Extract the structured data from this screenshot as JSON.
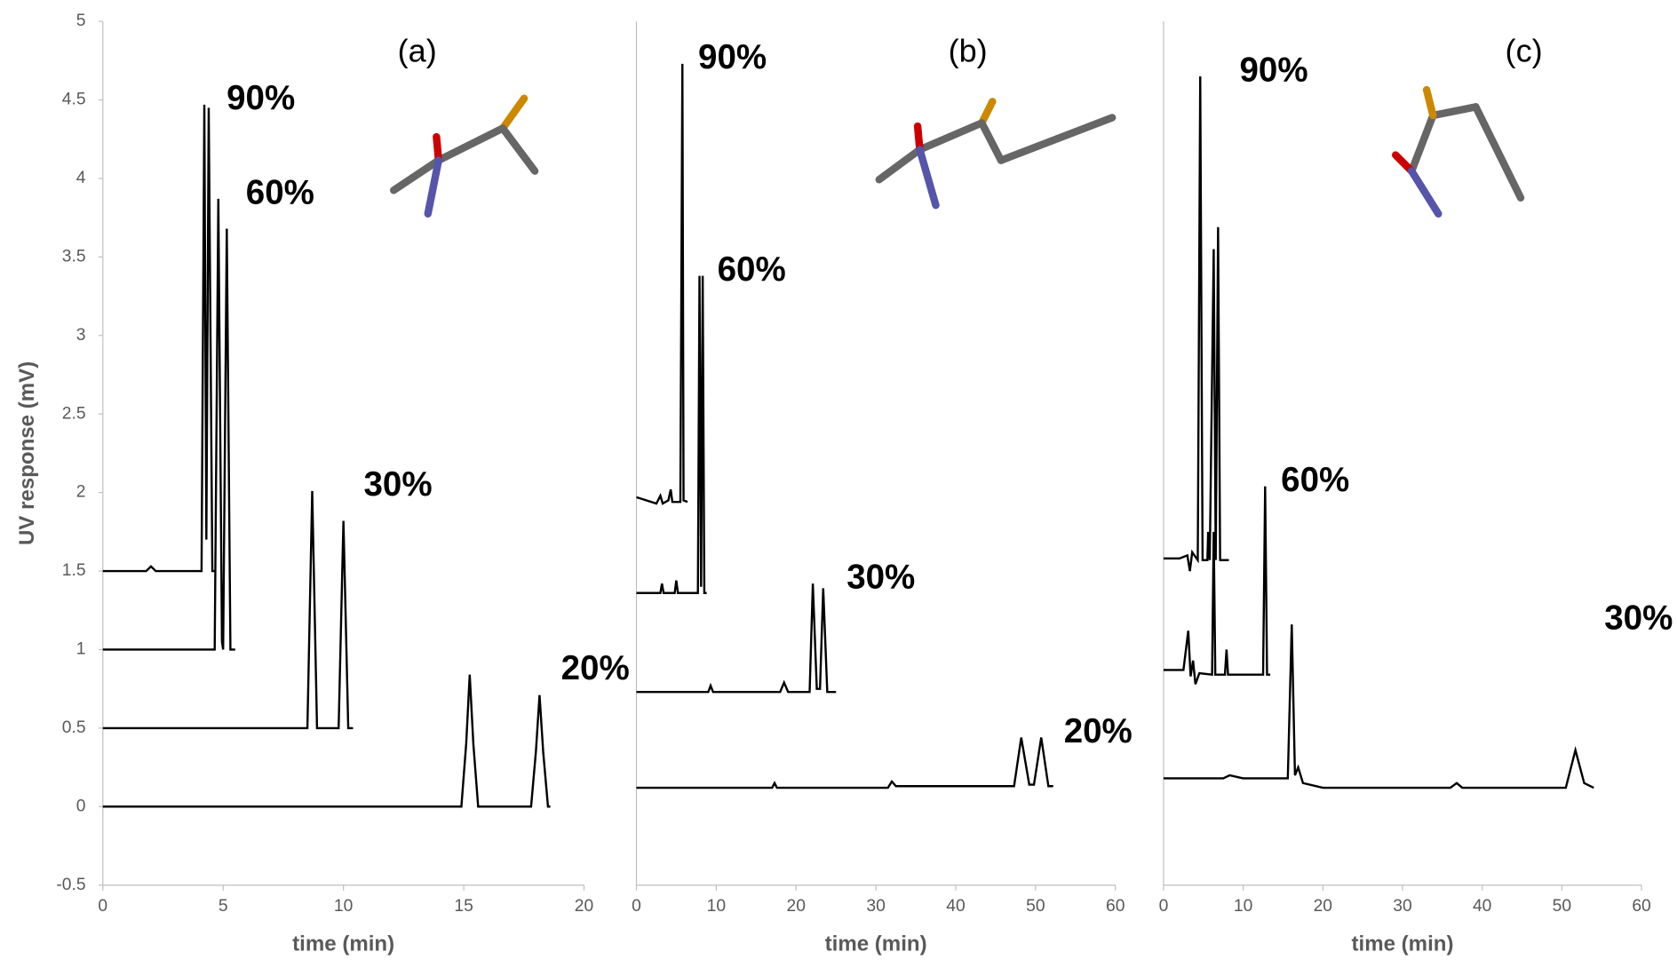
{
  "chart_data": [
    {
      "type": "line",
      "title": "(a)",
      "xlabel": "time (min)",
      "ylabel": "UV response (mV)",
      "xlim": [
        0,
        20
      ],
      "xticks": [
        0,
        5,
        10,
        15,
        20
      ],
      "ylim": [
        -0.5,
        5
      ],
      "yticks": [
        -0.5,
        0,
        0.5,
        1,
        1.5,
        2,
        2.5,
        3,
        3.5,
        4,
        4.5,
        5
      ],
      "series": [
        {
          "name": "90%",
          "color": "#000000",
          "x": [
            0,
            1.8,
            2,
            2.2,
            4.1,
            4.22,
            4.3,
            4.4,
            4.55,
            4.7
          ],
          "values": [
            1.5,
            1.5,
            1.53,
            1.5,
            1.5,
            4.47,
            1.7,
            4.45,
            1.5,
            1.5
          ]
        },
        {
          "name": "60%",
          "color": "#000000",
          "x": [
            0,
            4.65,
            4.8,
            4.95,
            5.0,
            5.15,
            5.3,
            5.5
          ],
          "values": [
            1,
            1,
            3.87,
            1.05,
            1.0,
            3.68,
            1.0,
            1.0
          ]
        },
        {
          "name": "30%",
          "color": "#000000",
          "x": [
            0,
            8.5,
            8.7,
            8.9,
            9.8,
            10.0,
            10.2,
            10.4
          ],
          "values": [
            0.5,
            0.5,
            2.01,
            0.5,
            0.5,
            1.82,
            0.5,
            0.5
          ]
        },
        {
          "name": "20%",
          "color": "#000000",
          "x": [
            0,
            14.9,
            15.1,
            15.25,
            15.4,
            15.6,
            17.8,
            18.0,
            18.15,
            18.3,
            18.5,
            18.6
          ],
          "values": [
            0,
            0,
            0.4,
            0.84,
            0.4,
            0,
            0,
            0.35,
            0.71,
            0.35,
            0,
            0
          ]
        }
      ]
    },
    {
      "type": "line",
      "title": "(b)",
      "xlabel": "time (min)",
      "xlim": [
        0,
        60
      ],
      "xticks": [
        0,
        10,
        20,
        30,
        40,
        50,
        60
      ],
      "ylim": [
        -0.5,
        5
      ],
      "series": [
        {
          "name": "90%",
          "color": "#000000",
          "x": [
            0,
            2.5,
            3,
            3.3,
            4,
            4.3,
            4.5,
            5.5,
            5.76,
            5.9,
            6.4
          ],
          "values": [
            1.97,
            1.93,
            1.98,
            1.93,
            1.95,
            2.02,
            1.94,
            1.94,
            4.73,
            1.95,
            1.94
          ]
        },
        {
          "name": "60%",
          "color": "#000000",
          "x": [
            0,
            3,
            3.2,
            3.4,
            4.8,
            5,
            5.2,
            7.7,
            7.9,
            8.1,
            8.3,
            8.5,
            8.8
          ],
          "values": [
            1.36,
            1.36,
            1.42,
            1.36,
            1.36,
            1.44,
            1.36,
            1.36,
            3.38,
            1.4,
            3.38,
            1.36,
            1.36
          ]
        },
        {
          "name": "30%",
          "color": "#000000",
          "x": [
            0,
            9,
            9.3,
            9.6,
            18,
            18.5,
            19,
            21.7,
            22.1,
            22.6,
            23.0,
            23.4,
            23.9,
            25
          ],
          "values": [
            0.73,
            0.73,
            0.77,
            0.73,
            0.73,
            0.79,
            0.73,
            0.73,
            1.42,
            0.75,
            0.75,
            1.39,
            0.73,
            0.73
          ]
        },
        {
          "name": "20%",
          "color": "#000000",
          "x": [
            0,
            17,
            17.3,
            17.6,
            31.5,
            32,
            32.5,
            47.3,
            48.2,
            49.2,
            49.8,
            50.7,
            51.6,
            52.2
          ],
          "values": [
            0.12,
            0.12,
            0.15,
            0.12,
            0.12,
            0.16,
            0.13,
            0.13,
            0.44,
            0.14,
            0.14,
            0.44,
            0.13,
            0.13
          ]
        }
      ]
    },
    {
      "type": "line",
      "title": "(c)",
      "xlabel": "time (min)",
      "xlim": [
        0,
        60
      ],
      "xticks": [
        0,
        10,
        20,
        30,
        40,
        50,
        60
      ],
      "ylim": [
        -0.5,
        5
      ],
      "series": [
        {
          "name": "90%",
          "color": "#000000",
          "x": [
            0,
            2,
            3,
            3.3,
            3.6,
            4.3,
            4.6,
            4.9,
            5.5,
            5.6,
            5.8,
            6.3,
            6.55,
            6.85,
            7.1,
            8.2
          ],
          "values": [
            1.58,
            1.58,
            1.6,
            1.5,
            1.62,
            1.57,
            4.65,
            1.57,
            1.57,
            1.75,
            1.57,
            3.55,
            1.57,
            3.69,
            1.57,
            1.57
          ]
        },
        {
          "name": "60%",
          "color": "#000000",
          "x": [
            0,
            2.5,
            3.1,
            3.4,
            3.7,
            4,
            4.5,
            6.1,
            6.3,
            6.5,
            7.7,
            7.9,
            8.1,
            12.5,
            12.75,
            13.0,
            13.4
          ],
          "values": [
            0.87,
            0.87,
            1.12,
            0.83,
            0.93,
            0.78,
            0.85,
            0.84,
            1.75,
            0.84,
            0.84,
            1.0,
            0.84,
            0.84,
            2.04,
            0.84,
            0.84
          ]
        },
        {
          "name": "30%",
          "color": "#000000",
          "x": [
            0,
            7.5,
            8.3,
            10,
            15.6,
            16.1,
            16.5,
            16.9,
            17.5,
            20,
            36,
            36.8,
            37.5,
            50.5,
            51.7,
            52.8,
            54
          ],
          "values": [
            0.18,
            0.18,
            0.2,
            0.18,
            0.18,
            1.16,
            0.2,
            0.25,
            0.15,
            0.12,
            0.12,
            0.15,
            0.12,
            0.12,
            0.36,
            0.15,
            0.12
          ]
        }
      ]
    }
  ]
}
